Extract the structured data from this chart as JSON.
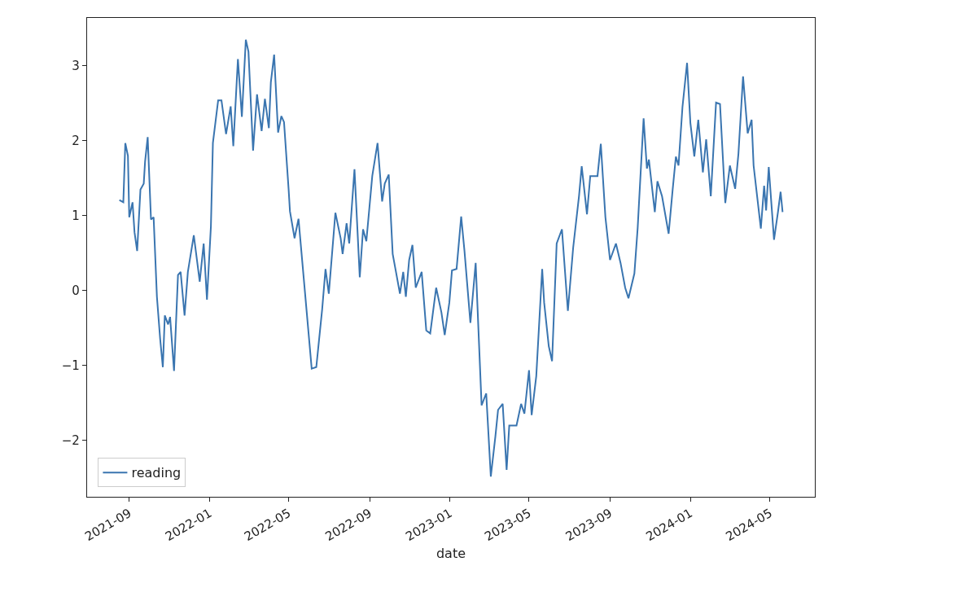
{
  "chart_data": {
    "type": "line",
    "xlabel": "date",
    "xlim": [
      "2021-06-29",
      "2024-07-08"
    ],
    "ylim": [
      -2.75,
      3.64
    ],
    "xticks": [
      {
        "value": "2021-09-01",
        "label": "2021-09"
      },
      {
        "value": "2022-01-01",
        "label": "2022-01"
      },
      {
        "value": "2022-05-01",
        "label": "2022-05"
      },
      {
        "value": "2022-09-01",
        "label": "2022-09"
      },
      {
        "value": "2023-01-01",
        "label": "2023-01"
      },
      {
        "value": "2023-05-01",
        "label": "2023-05"
      },
      {
        "value": "2023-09-01",
        "label": "2023-09"
      },
      {
        "value": "2024-01-01",
        "label": "2024-01"
      },
      {
        "value": "2024-05-01",
        "label": "2024-05"
      }
    ],
    "yticks": [
      -2,
      -1,
      0,
      1,
      2,
      3
    ],
    "grid": false,
    "legend": "bottom left",
    "x": [
      "2021-08-17",
      "2021-08-23",
      "2021-08-26",
      "2021-08-30",
      "2021-09-01",
      "2021-09-06",
      "2021-09-09",
      "2021-09-13",
      "2021-09-18",
      "2021-09-23",
      "2021-09-25",
      "2021-09-29",
      "2021-10-04",
      "2021-10-08",
      "2021-10-13",
      "2021-10-18",
      "2021-10-22",
      "2021-10-25",
      "2021-10-30",
      "2021-11-02",
      "2021-11-08",
      "2021-11-14",
      "2021-11-18",
      "2021-11-24",
      "2021-11-29",
      "2021-12-08",
      "2021-12-17",
      "2021-12-23",
      "2021-12-28",
      "2022-01-03",
      "2022-01-06",
      "2022-01-14",
      "2022-01-19",
      "2022-01-26",
      "2022-02-02",
      "2022-02-06",
      "2022-02-13",
      "2022-02-19",
      "2022-02-25",
      "2022-03-01",
      "2022-03-08",
      "2022-03-14",
      "2022-03-21",
      "2022-03-26",
      "2022-04-01",
      "2022-04-04",
      "2022-04-09",
      "2022-04-15",
      "2022-04-20",
      "2022-04-24",
      "2022-05-01",
      "2022-05-03",
      "2022-05-10",
      "2022-05-16",
      "2022-05-26",
      "2022-06-05",
      "2022-06-12",
      "2022-06-21",
      "2022-06-26",
      "2022-07-01",
      "2022-07-11",
      "2022-07-19",
      "2022-07-22",
      "2022-07-28",
      "2022-08-01",
      "2022-08-09",
      "2022-08-17",
      "2022-08-22",
      "2022-08-27",
      "2022-09-05",
      "2022-09-13",
      "2022-09-20",
      "2022-09-24",
      "2022-09-30",
      "2022-10-06",
      "2022-10-11",
      "2022-10-17",
      "2022-10-22",
      "2022-10-26",
      "2022-10-31",
      "2022-11-05",
      "2022-11-10",
      "2022-11-19",
      "2022-11-26",
      "2022-12-02",
      "2022-12-11",
      "2022-12-19",
      "2022-12-24",
      "2022-12-31",
      "2023-01-04",
      "2023-01-11",
      "2023-01-18",
      "2023-01-23",
      "2023-02-01",
      "2023-02-09",
      "2023-02-18",
      "2023-02-25",
      "2023-03-04",
      "2023-03-11",
      "2023-03-15",
      "2023-03-22",
      "2023-03-28",
      "2023-04-01",
      "2023-04-12",
      "2023-04-19",
      "2023-04-24",
      "2023-05-01",
      "2023-05-05",
      "2023-05-12",
      "2023-05-21",
      "2023-05-24",
      "2023-05-31",
      "2023-06-05",
      "2023-06-12",
      "2023-06-20",
      "2023-06-29",
      "2023-07-07",
      "2023-07-16",
      "2023-07-20",
      "2023-07-28",
      "2023-08-02",
      "2023-08-13",
      "2023-08-18",
      "2023-08-25",
      "2023-09-01",
      "2023-09-10",
      "2023-09-17",
      "2023-09-24",
      "2023-09-29",
      "2023-10-08",
      "2023-10-13",
      "2023-10-15",
      "2023-10-22",
      "2023-10-27",
      "2023-10-30",
      "2023-11-08",
      "2023-11-12",
      "2023-11-19",
      "2023-11-29",
      "2023-12-05",
      "2023-12-10",
      "2023-12-14",
      "2023-12-20",
      "2023-12-27",
      "2024-01-01",
      "2024-01-07",
      "2024-01-13",
      "2024-01-20",
      "2024-01-25",
      "2024-02-01",
      "2024-02-09",
      "2024-02-15",
      "2024-02-23",
      "2024-03-01",
      "2024-03-09",
      "2024-03-14",
      "2024-03-21",
      "2024-03-28",
      "2024-04-03",
      "2024-04-06",
      "2024-04-17",
      "2024-04-22",
      "2024-04-25",
      "2024-04-29",
      "2024-05-07",
      "2024-05-13",
      "2024-05-17",
      "2024-05-20"
    ],
    "series": [
      {
        "name": "reading",
        "color": "#3a75b0",
        "values": [
          1.21,
          1.18,
          1.97,
          1.8,
          0.98,
          1.18,
          0.78,
          0.53,
          1.35,
          1.43,
          1.72,
          2.05,
          0.95,
          0.98,
          -0.08,
          -0.65,
          -1.02,
          -0.33,
          -0.45,
          -0.35,
          -1.07,
          0.21,
          0.25,
          -0.33,
          0.25,
          0.74,
          0.12,
          0.63,
          -0.12,
          0.86,
          1.97,
          2.54,
          2.54,
          2.09,
          2.46,
          1.93,
          3.09,
          2.32,
          3.35,
          3.19,
          1.87,
          2.62,
          2.13,
          2.56,
          2.17,
          2.78,
          3.15,
          2.11,
          2.33,
          2.25,
          1.35,
          1.06,
          0.7,
          0.96,
          -0.04,
          -1.04,
          -1.02,
          -0.24,
          0.29,
          -0.04,
          1.04,
          0.7,
          0.49,
          0.9,
          0.63,
          1.62,
          0.18,
          0.82,
          0.66,
          1.53,
          1.97,
          1.19,
          1.43,
          1.55,
          0.49,
          0.25,
          -0.04,
          0.25,
          -0.08,
          0.41,
          0.61,
          0.04,
          0.25,
          -0.53,
          -0.57,
          0.04,
          -0.29,
          -0.59,
          -0.16,
          0.27,
          0.29,
          0.99,
          0.53,
          -0.43,
          0.37,
          -1.53,
          -1.37,
          -2.48,
          -1.94,
          -1.59,
          -1.51,
          -2.39,
          -1.8,
          -1.8,
          -1.51,
          -1.64,
          -1.06,
          -1.66,
          -1.14,
          0.29,
          -0.16,
          -0.74,
          -0.94,
          0.63,
          0.82,
          -0.27,
          0.57,
          1.27,
          1.66,
          1.02,
          1.53,
          1.53,
          1.96,
          0.98,
          0.41,
          0.63,
          0.37,
          0.04,
          -0.1,
          0.23,
          0.84,
          1.17,
          2.3,
          1.63,
          1.75,
          1.05,
          1.46,
          1.26,
          0.76,
          1.34,
          1.79,
          1.67,
          2.45,
          3.04,
          2.24,
          1.79,
          2.28,
          1.58,
          2.02,
          1.26,
          2.51,
          2.49,
          1.17,
          1.67,
          1.36,
          1.83,
          2.86,
          2.1,
          2.28,
          1.67,
          0.83,
          1.4,
          1.07,
          1.65,
          0.68,
          1.05,
          1.32,
          1.05
        ]
      }
    ]
  }
}
